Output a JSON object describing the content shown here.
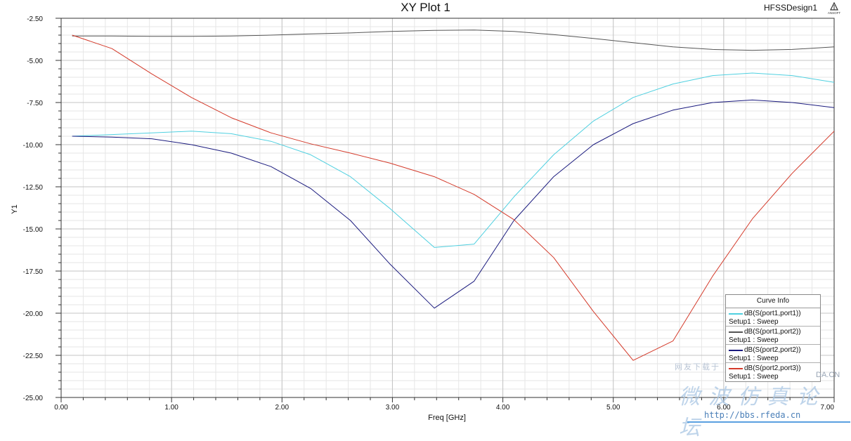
{
  "header": {
    "title": "XY Plot 1",
    "design_name": "HFSSDesign1",
    "logo_text": "ANSOFT"
  },
  "watermark": {
    "top_text": "网友下载于",
    "big_text": "微波仿真论坛",
    "url": "http://bbs.rfeda.cn",
    "short_url": "DA.CN"
  },
  "legend": {
    "title": "Curve Info",
    "entries": [
      {
        "name": "dB(S(port1,port1))",
        "sub": "Setup1 : Sweep",
        "color": "#4fd0e0"
      },
      {
        "name": "dB(S(port1,port2))",
        "sub": "Setup1 : Sweep",
        "color": "#555555"
      },
      {
        "name": "dB(S(port2,port2))",
        "sub": "Setup1 : Sweep",
        "color": "#1a1a7e"
      },
      {
        "name": "dB(S(port2,port3))",
        "sub": "Setup1 : Sweep",
        "color": "#d43a2a"
      }
    ]
  },
  "chart_data": {
    "type": "line",
    "title": "XY Plot 1",
    "xlabel": "Freq [GHz]",
    "ylabel": "Y1",
    "xlim": [
      0.0,
      7.0
    ],
    "ylim": [
      -25.0,
      -2.5
    ],
    "grid": true,
    "legend_position": "bottom-right",
    "x_ticks": [
      "0.00",
      "1.00",
      "2.00",
      "3.00",
      "4.00",
      "5.00",
      "6.00",
      "7.00"
    ],
    "y_ticks": [
      "-2.50",
      "-5.00",
      "-7.50",
      "-10.00",
      "-12.50",
      "-15.00",
      "-17.50",
      "-20.00",
      "-22.50",
      "-25.00"
    ],
    "x": [
      0.1,
      0.46,
      0.82,
      1.18,
      1.54,
      1.9,
      2.26,
      2.62,
      2.98,
      3.38,
      3.74,
      4.1,
      4.46,
      4.82,
      5.18,
      5.54,
      5.9,
      6.26,
      6.62,
      7.0
    ],
    "series": [
      {
        "name": "dB(S(port1,port1))",
        "color": "#4fd0e0",
        "values": [
          -9.5,
          -9.4,
          -9.3,
          -9.2,
          -9.35,
          -9.8,
          -10.6,
          -11.9,
          -13.8,
          -16.1,
          -15.9,
          -13.1,
          -10.6,
          -8.6,
          -7.2,
          -6.4,
          -5.9,
          -5.75,
          -5.9,
          -6.3
        ]
      },
      {
        "name": "dB(S(port1,port2))",
        "color": "#555555",
        "values": [
          -3.55,
          -3.55,
          -3.57,
          -3.57,
          -3.55,
          -3.5,
          -3.43,
          -3.37,
          -3.28,
          -3.22,
          -3.2,
          -3.28,
          -3.47,
          -3.7,
          -3.95,
          -4.2,
          -4.35,
          -4.4,
          -4.35,
          -4.2
        ]
      },
      {
        "name": "dB(S(port2,port2))",
        "color": "#1a1a7e",
        "values": [
          -9.5,
          -9.55,
          -9.65,
          -10.0,
          -10.5,
          -11.3,
          -12.6,
          -14.5,
          -17.1,
          -19.7,
          -18.1,
          -14.5,
          -11.9,
          -10.0,
          -8.75,
          -7.95,
          -7.5,
          -7.35,
          -7.5,
          -7.8
        ]
      },
      {
        "name": "dB(S(port2,port3))",
        "color": "#d43a2a",
        "values": [
          -3.5,
          -4.3,
          -5.8,
          -7.2,
          -8.4,
          -9.3,
          -9.95,
          -10.5,
          -11.1,
          -11.9,
          -12.95,
          -14.45,
          -16.7,
          -19.9,
          -22.8,
          -21.65,
          -17.8,
          -14.4,
          -11.7,
          -9.2
        ]
      }
    ]
  }
}
